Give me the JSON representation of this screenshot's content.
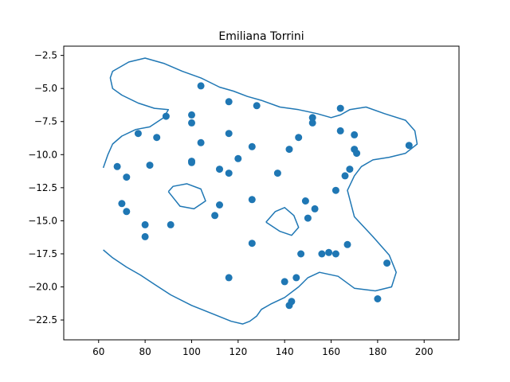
{
  "chart_data": {
    "type": "scatter",
    "title": "Emiliana Torrini",
    "xlabel": "",
    "ylabel": "",
    "xlim": [
      45,
      215
    ],
    "ylim": [
      -24.0,
      -1.8
    ],
    "xticks": [
      60,
      80,
      100,
      120,
      140,
      160,
      180,
      200
    ],
    "yticks": [
      -22.5,
      -20.0,
      -17.5,
      -15.0,
      -12.5,
      -10.0,
      -7.5,
      -5.0,
      -2.5
    ],
    "xtick_labels": [
      "60",
      "80",
      "100",
      "120",
      "140",
      "160",
      "180",
      "200"
    ],
    "ytick_labels": [
      "−22.5",
      "−20.0",
      "−17.5",
      "−15.0",
      "−12.5",
      "−10.0",
      "−7.5",
      "−5.0",
      "−2.5"
    ],
    "grid": false,
    "point_color": "#1f77b4",
    "line_color": "#1f77b4",
    "points": {
      "x": [
        104,
        116,
        128,
        89,
        100,
        100,
        77,
        85,
        104,
        116,
        126,
        142,
        146,
        152,
        152,
        164,
        164,
        170,
        170,
        171,
        193.5,
        68,
        72,
        82,
        100,
        100,
        112,
        116,
        120,
        137,
        166,
        168,
        162,
        70,
        72,
        80,
        80,
        91,
        110,
        112,
        126,
        149,
        150,
        153,
        126,
        147,
        156,
        159,
        162,
        167,
        116,
        140,
        145,
        143,
        142,
        184,
        180
      ],
      "y": [
        -4.8,
        -6.0,
        -6.3,
        -7.1,
        -7.0,
        -7.6,
        -8.4,
        -8.7,
        -9.1,
        -8.4,
        -9.4,
        -9.6,
        -8.7,
        -7.2,
        -7.6,
        -6.5,
        -8.2,
        -8.5,
        -9.6,
        -9.9,
        -9.3,
        -10.9,
        -11.7,
        -10.8,
        -10.5,
        -10.6,
        -11.1,
        -11.4,
        -10.3,
        -11.4,
        -11.6,
        -11.1,
        -12.7,
        -13.7,
        -14.3,
        -15.3,
        -16.2,
        -15.3,
        -14.6,
        -13.8,
        -13.4,
        -13.5,
        -14.8,
        -14.1,
        -16.7,
        -17.5,
        -17.5,
        -17.4,
        -17.5,
        -16.8,
        -19.3,
        -19.6,
        -19.3,
        -21.1,
        -21.4,
        -18.2,
        -20.9
      ]
    },
    "contours": [
      {
        "x": [
          62,
          64,
          66,
          70,
          76,
          82,
          88,
          90,
          84,
          77,
          70,
          66,
          65,
          66,
          73,
          80,
          88,
          96,
          104,
          112,
          118,
          124,
          130,
          138,
          146,
          154,
          160,
          164,
          168,
          175,
          183,
          192,
          196,
          197,
          192,
          185,
          178,
          173,
          170,
          167,
          170,
          178,
          185,
          188,
          186,
          179,
          170,
          163,
          155,
          150,
          146,
          140,
          134,
          130,
          128,
          125,
          122,
          117,
          110,
          100,
          91,
          84,
          78,
          72,
          66,
          62
        ],
        "y": [
          -11.0,
          -10.0,
          -9.2,
          -8.6,
          -8.1,
          -7.9,
          -7.2,
          -6.6,
          -6.5,
          -6.1,
          -5.5,
          -5.0,
          -4.2,
          -3.7,
          -3.0,
          -2.7,
          -3.1,
          -3.7,
          -4.2,
          -4.9,
          -5.2,
          -5.6,
          -5.9,
          -6.4,
          -6.6,
          -6.9,
          -7.2,
          -7.0,
          -6.6,
          -6.4,
          -6.9,
          -7.4,
          -8.2,
          -9.2,
          -9.9,
          -10.2,
          -10.4,
          -10.9,
          -11.6,
          -12.7,
          -14.7,
          -16.2,
          -17.6,
          -18.9,
          -20.0,
          -20.3,
          -20.1,
          -19.2,
          -18.9,
          -19.3,
          -20.0,
          -20.8,
          -21.3,
          -21.7,
          -22.2,
          -22.6,
          -22.8,
          -22.6,
          -22.1,
          -21.4,
          -20.6,
          -19.8,
          -19.1,
          -18.5,
          -17.8,
          -17.2
        ]
      },
      {
        "x": [
          90,
          92,
          98,
          104,
          106,
          101,
          95,
          90
        ],
        "y": [
          -12.8,
          -12.4,
          -12.2,
          -12.6,
          -13.5,
          -14.1,
          -13.9,
          -12.8
        ]
      },
      {
        "x": [
          132,
          136,
          140,
          144,
          146,
          143,
          138,
          132
        ],
        "y": [
          -15.1,
          -14.3,
          -14.0,
          -14.6,
          -15.5,
          -16.1,
          -15.8,
          -15.1
        ]
      }
    ]
  }
}
